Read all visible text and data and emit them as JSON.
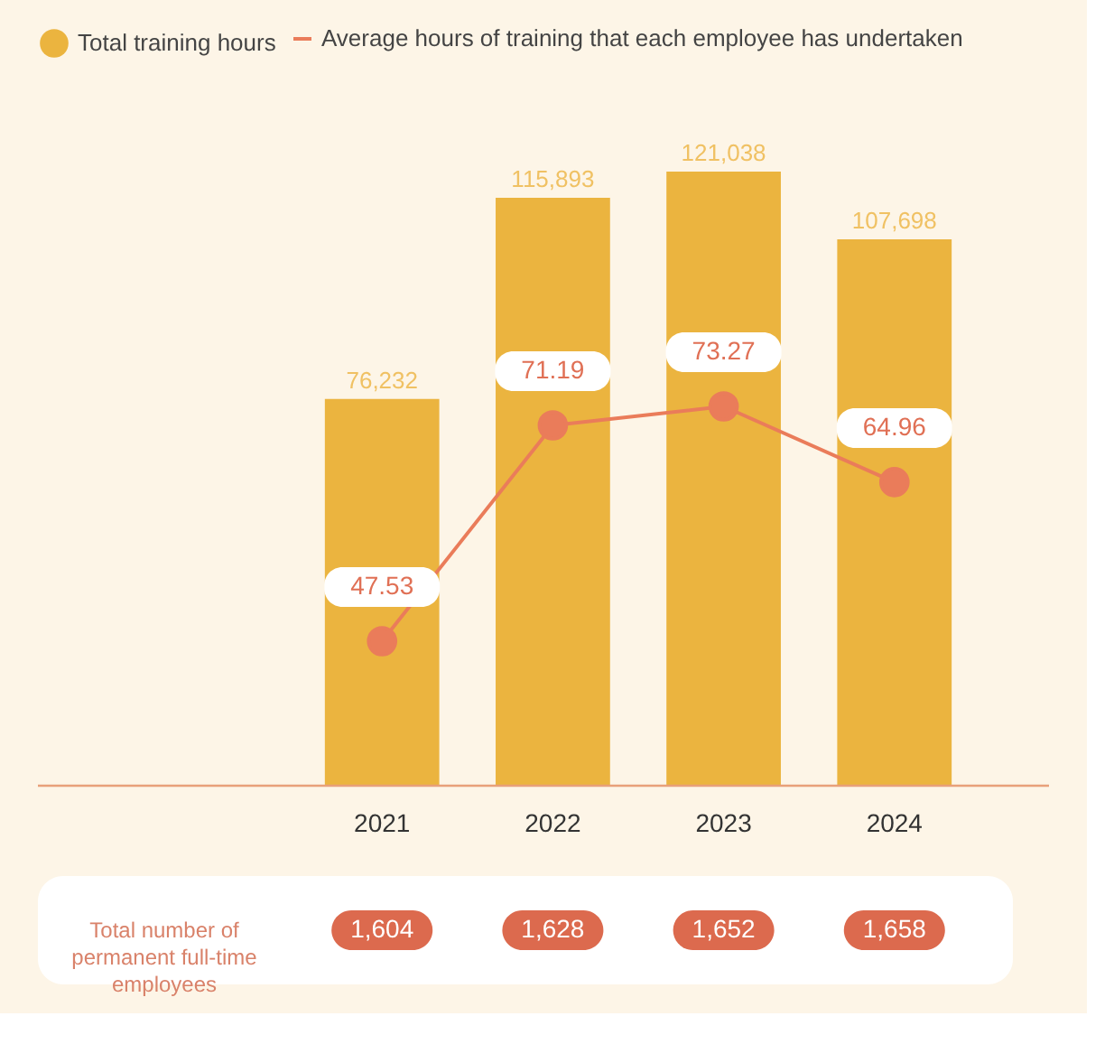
{
  "chart_data": {
    "type": "bar",
    "categories": [
      "2021",
      "2022",
      "2023",
      "2024"
    ],
    "series": [
      {
        "name": "Total training hours",
        "color": "#ebb43f",
        "values": [
          76232,
          115893,
          121038,
          107698
        ],
        "value_labels": [
          "76,232",
          "115,893",
          "121,038",
          "107,698"
        ]
      },
      {
        "name": "Average hours of training that each employee has undertaken",
        "type": "line",
        "axis": "y2",
        "color": "#ea7c5a",
        "values": [
          47.53,
          71.19,
          73.27,
          64.96
        ]
      }
    ],
    "data_labels": true,
    "legend": "top",
    "marker": "circle",
    "line_style": "solid",
    "grid": false,
    "annotations": [
      "Total number of permanent full-time employees",
      "1,604",
      "1,628",
      "1,652",
      "1,658"
    ]
  }
}
